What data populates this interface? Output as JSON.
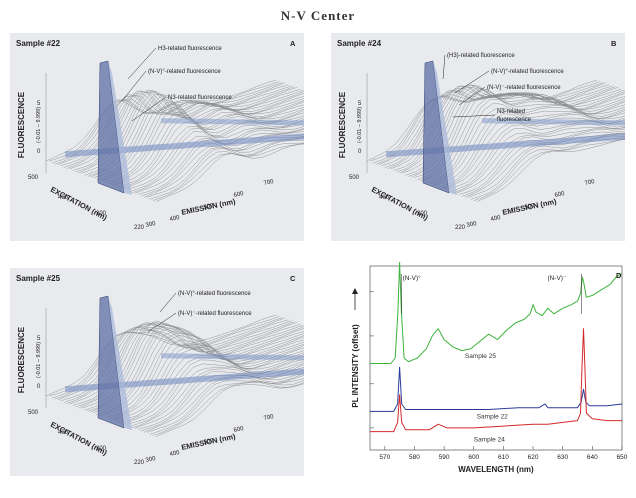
{
  "title": "N-V Center",
  "panels": [
    {
      "id": "A",
      "sample": "Sample #22",
      "letter": "A",
      "annotations": [
        "H3-related fluorescence",
        "(N-V)°-related fluorescence",
        "N3-related fluorescence"
      ],
      "ylabel": "FLUORESCENCE",
      "range_label": "(-0.01 – 9.999)",
      "y_ticks": [
        "0",
        "5"
      ],
      "xlabel": "EXCITATION (nm)",
      "exc_ticks": [
        "500",
        "400",
        "300",
        "220"
      ],
      "emlabel": "EMISSION (nm)",
      "em_ticks": [
        "300",
        "400",
        "500",
        "600",
        "700"
      ]
    },
    {
      "id": "B",
      "sample": "Sample #24",
      "letter": "B",
      "annotations": [
        "(H3)-related fluorescence",
        "(N-V)°-related fluorescence",
        "(N-V)⁻-related fluorescence",
        "N3-related fluorescence"
      ],
      "ylabel": "FLUORESCENCE",
      "range_label": "(-0.01 – 9.999)",
      "y_ticks": [
        "0",
        "5"
      ],
      "xlabel": "EXCITATION (nm)",
      "exc_ticks": [
        "500",
        "400",
        "300",
        "220"
      ],
      "emlabel": "EMISSION (nm)",
      "em_ticks": [
        "300",
        "400",
        "500",
        "600",
        "700"
      ]
    },
    {
      "id": "C",
      "sample": "Sample #25",
      "letter": "C",
      "annotations": [
        "(N-V)°-related fluorescence",
        "(N-V)⁻-related fluorescence"
      ],
      "ylabel": "FLUORESCENCE",
      "range_label": "(-0.01 – 9.999)",
      "y_ticks": [
        "0",
        "5"
      ],
      "xlabel": "EXCITATION (nm)",
      "exc_ticks": [
        "500",
        "400",
        "300",
        "220"
      ],
      "emlabel": "EMISSION (nm)",
      "em_ticks": [
        "300",
        "400",
        "500",
        "600",
        "700"
      ]
    }
  ],
  "chart_data": {
    "type": "line",
    "letter": "D",
    "xlabel": "WAVELENGTH (nm)",
    "ylabel": "PL INTENSITY (offset)",
    "xlim": [
      565,
      650
    ],
    "ylim": [
      0,
      10
    ],
    "x_ticks": [
      570,
      580,
      590,
      600,
      610,
      620,
      630,
      640,
      650
    ],
    "peak_labels": [
      {
        "text": "(N-V)°",
        "x": 575
      },
      {
        "text": "(N-V)⁻",
        "x": 637
      }
    ],
    "series": [
      {
        "name": "Sample 25",
        "color": "#3cb43c",
        "points": [
          [
            565,
            4.7
          ],
          [
            572,
            4.7
          ],
          [
            573.5,
            5.0
          ],
          [
            574.4,
            7.5
          ],
          [
            575,
            10.2
          ],
          [
            575.6,
            7.5
          ],
          [
            576.5,
            5.0
          ],
          [
            578,
            4.8
          ],
          [
            581,
            5.0
          ],
          [
            584,
            5.5
          ],
          [
            586,
            6.2
          ],
          [
            588,
            6.6
          ],
          [
            590,
            6.0
          ],
          [
            593,
            5.6
          ],
          [
            596,
            5.4
          ],
          [
            599,
            5.5
          ],
          [
            602,
            5.9
          ],
          [
            605,
            6.3
          ],
          [
            608,
            6.0
          ],
          [
            611,
            6.5
          ],
          [
            614,
            6.9
          ],
          [
            617,
            7.1
          ],
          [
            619,
            7.4
          ],
          [
            620,
            7.9
          ],
          [
            621,
            7.5
          ],
          [
            623,
            7.3
          ],
          [
            625,
            7.7
          ],
          [
            627,
            7.4
          ],
          [
            630,
            7.7
          ],
          [
            633,
            7.9
          ],
          [
            635,
            8.1
          ],
          [
            636,
            8.5
          ],
          [
            636.6,
            9.4
          ],
          [
            637.2,
            9.0
          ],
          [
            638,
            8.3
          ],
          [
            640,
            8.4
          ],
          [
            643,
            8.7
          ],
          [
            646,
            9.0
          ],
          [
            648,
            9.4
          ],
          [
            650,
            9.6
          ]
        ]
      },
      {
        "name": "Sample 22",
        "color": "#2a3c9a",
        "points": [
          [
            565,
            2.1
          ],
          [
            573,
            2.1
          ],
          [
            574.3,
            2.5
          ],
          [
            575,
            4.5
          ],
          [
            575.7,
            2.5
          ],
          [
            577,
            2.2
          ],
          [
            585,
            2.2
          ],
          [
            595,
            2.2
          ],
          [
            605,
            2.2
          ],
          [
            615,
            2.3
          ],
          [
            622,
            2.3
          ],
          [
            624,
            2.5
          ],
          [
            625,
            2.3
          ],
          [
            630,
            2.3
          ],
          [
            635,
            2.3
          ],
          [
            636.2,
            2.6
          ],
          [
            637,
            3.3
          ],
          [
            637.8,
            2.6
          ],
          [
            639,
            2.4
          ],
          [
            645,
            2.4
          ],
          [
            650,
            2.5
          ]
        ]
      },
      {
        "name": "Sample 24",
        "color": "#d42a2a",
        "points": [
          [
            565,
            1.0
          ],
          [
            573,
            1.0
          ],
          [
            574.3,
            1.5
          ],
          [
            575,
            3.0
          ],
          [
            575.7,
            1.5
          ],
          [
            577,
            1.1
          ],
          [
            585,
            1.1
          ],
          [
            588,
            1.4
          ],
          [
            591,
            1.2
          ],
          [
            600,
            1.2
          ],
          [
            610,
            1.3
          ],
          [
            620,
            1.4
          ],
          [
            625,
            1.4
          ],
          [
            630,
            1.5
          ],
          [
            635,
            1.6
          ],
          [
            636,
            2.0
          ],
          [
            636.5,
            4.5
          ],
          [
            637,
            6.6
          ],
          [
            637.5,
            4.5
          ],
          [
            638,
            2.0
          ],
          [
            640,
            1.7
          ],
          [
            645,
            1.6
          ],
          [
            650,
            1.6
          ]
        ]
      }
    ],
    "series_label_pos": [
      {
        "name": "Sample 25",
        "x": 597,
        "y": 5.0
      },
      {
        "name": "Sample 22",
        "x": 601,
        "y": 1.7
      },
      {
        "name": "Sample 24",
        "x": 600,
        "y": 0.45
      }
    ]
  }
}
